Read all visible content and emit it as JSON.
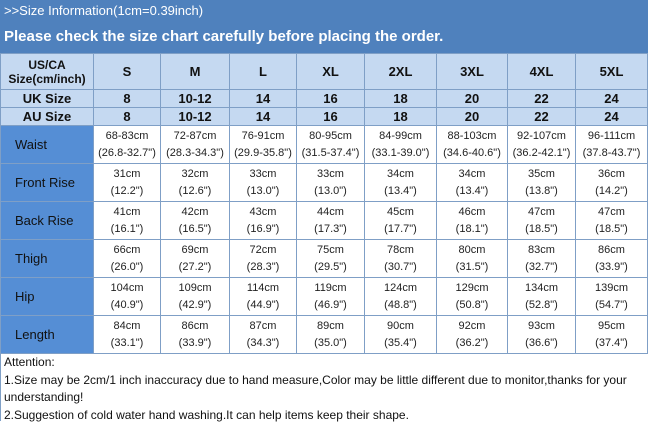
{
  "banner": {
    "info": ">>Size Information(1cm=0.39inch)",
    "notice": "Please check the size chart carefully before placing the order."
  },
  "table": {
    "corner": [
      "US/CA",
      "Size(cm/inch)"
    ],
    "sizes": [
      "S",
      "M",
      "L",
      "XL",
      "2XL",
      "3XL",
      "4XL",
      "5XL"
    ],
    "uk": {
      "label": "UK Size",
      "values": [
        "8",
        "10-12",
        "14",
        "16",
        "18",
        "20",
        "22",
        "24"
      ]
    },
    "au": {
      "label": "AU Size",
      "values": [
        "8",
        "10-12",
        "14",
        "16",
        "18",
        "20",
        "22",
        "24"
      ]
    },
    "rows": [
      {
        "label": "Waist",
        "cm": [
          "68-83cm",
          "72-87cm",
          "76-91cm",
          "80-95cm",
          "84-99cm",
          "88-103cm",
          "92-107cm",
          "96-111cm"
        ],
        "inch": [
          "(26.8-32.7\")",
          "(28.3-34.3\")",
          "(29.9-35.8\")",
          "(31.5-37.4\")",
          "(33.1-39.0\")",
          "(34.6-40.6\")",
          "(36.2-42.1\")",
          "(37.8-43.7\")"
        ]
      },
      {
        "label": "Front Rise",
        "cm": [
          "31cm",
          "32cm",
          "33cm",
          "33cm",
          "34cm",
          "34cm",
          "35cm",
          "36cm"
        ],
        "inch": [
          "(12.2\")",
          "(12.6\")",
          "(13.0\")",
          "(13.0\")",
          "(13.4\")",
          "(13.4\")",
          "(13.8\")",
          "(14.2\")"
        ]
      },
      {
        "label": "Back Rise",
        "cm": [
          "41cm",
          "42cm",
          "43cm",
          "44cm",
          "45cm",
          "46cm",
          "47cm",
          "47cm"
        ],
        "inch": [
          "(16.1\")",
          "(16.5\")",
          "(16.9\")",
          "(17.3\")",
          "(17.7\")",
          "(18.1\")",
          "(18.5\")",
          "(18.5\")"
        ]
      },
      {
        "label": "Thigh",
        "cm": [
          "66cm",
          "69cm",
          "72cm",
          "75cm",
          "78cm",
          "80cm",
          "83cm",
          "86cm"
        ],
        "inch": [
          "(26.0\")",
          "(27.2\")",
          "(28.3\")",
          "(29.5\")",
          "(30.7\")",
          "(31.5\")",
          "(32.7\")",
          "(33.9\")"
        ]
      },
      {
        "label": "Hip",
        "cm": [
          "104cm",
          "109cm",
          "114cm",
          "119cm",
          "124cm",
          "129cm",
          "134cm",
          "139cm"
        ],
        "inch": [
          "(40.9\")",
          "(42.9\")",
          "(44.9\")",
          "(46.9\")",
          "(48.8\")",
          "(50.8\")",
          "(52.8\")",
          "(54.7\")"
        ]
      },
      {
        "label": "Length",
        "cm": [
          "84cm",
          "86cm",
          "87cm",
          "89cm",
          "90cm",
          "92cm",
          "93cm",
          "95cm"
        ],
        "inch": [
          "(33.1\")",
          "(33.9\")",
          "(34.3\")",
          "(35.0\")",
          "(35.4\")",
          "(36.2\")",
          "(36.6\")",
          "(37.4\")"
        ]
      }
    ]
  },
  "attention": {
    "title": "Attention:",
    "lines": [
      "1.Size may be 2cm/1 inch inaccuracy due to hand measure,Color may be little different  due to monitor,thanks for your understanding!",
      "2.Suggestion of cold water hand washing.It can help items keep their shape."
    ]
  }
}
